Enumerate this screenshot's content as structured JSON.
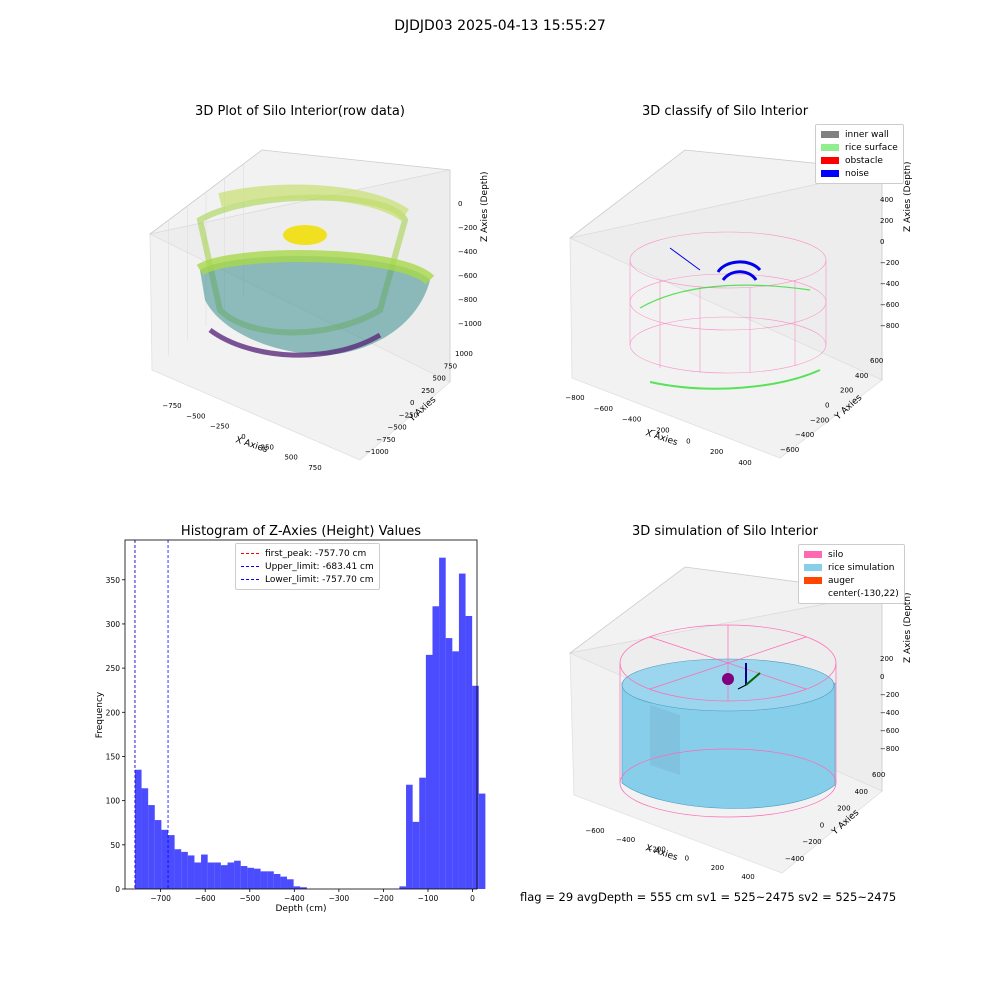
{
  "figure": {
    "suptitle": "DJDJD03 2025-04-13 15:55:27",
    "footer": "flag = 29  avgDepth = 555 cm  sv1 = 525~2475  sv2 = 525~2475"
  },
  "panels": {
    "raw": {
      "title": "3D Plot of Silo Interior(row data)",
      "xlabel": "X Axies",
      "ylabel": "Y Axies",
      "zlabel": "Z Axies (Depth)",
      "xticks": [
        "−750",
        "−500",
        "−250",
        "0",
        "250",
        "500",
        "750"
      ],
      "yticks": [
        "1000",
        "750",
        "500",
        "250",
        "0",
        "−250",
        "−500",
        "−750",
        "−1000"
      ],
      "zticks": [
        "0",
        "−200",
        "−400",
        "−600",
        "−800",
        "−1000"
      ]
    },
    "classify": {
      "title": "3D classify of Silo Interior",
      "xlabel": "X Axies",
      "ylabel": "Y Axies",
      "zlabel": "Z Axies (Depth)",
      "xticks": [
        "−800",
        "−600",
        "−400",
        "−200",
        "0",
        "200",
        "400"
      ],
      "yticks": [
        "600",
        "400",
        "200",
        "0",
        "−200",
        "−400",
        "−600"
      ],
      "zticks": [
        "400",
        "200",
        "0",
        "−200",
        "−400",
        "−600",
        "−800"
      ],
      "legend": [
        {
          "label": "inner wall",
          "color": "#808080"
        },
        {
          "label": "rice surface",
          "color": "#90ee90"
        },
        {
          "label": "obstacle",
          "color": "#ff0000"
        },
        {
          "label": "noise",
          "color": "#0000ff"
        }
      ]
    },
    "simulation": {
      "title": "3D simulation of Silo Interior",
      "xlabel": "X Axies",
      "ylabel": "Y Axies",
      "zlabel": "Z Axies (Depth)",
      "xticks": [
        "−600",
        "−400",
        "−200",
        "0",
        "200",
        "400"
      ],
      "yticks": [
        "600",
        "400",
        "200",
        "0",
        "−200",
        "−400"
      ],
      "zticks": [
        "200",
        "0",
        "−200",
        "−400",
        "−600",
        "−800"
      ],
      "legend": [
        {
          "label": "silo",
          "color": "#ff69b4"
        },
        {
          "label": "rice simulation",
          "color": "#87ceeb"
        },
        {
          "label": "auger",
          "color": "#ff4500"
        },
        {
          "label": "center(-130,22)",
          "color": ""
        }
      ]
    }
  },
  "chart_data": {
    "type": "bar",
    "title": "Histogram of Z-Axies (Height) Values",
    "xlabel": "Depth (cm)",
    "ylabel": "Frequency",
    "xlim": [
      -780,
      10
    ],
    "ylim": [
      0,
      395
    ],
    "xticks": [
      -700,
      -600,
      -500,
      -400,
      -300,
      -200,
      -100,
      0
    ],
    "xtick_labels": [
      "−700",
      "−600",
      "−500",
      "−400",
      "−300",
      "−200",
      "−100",
      "0"
    ],
    "yticks": [
      0,
      50,
      100,
      150,
      200,
      250,
      300,
      350
    ],
    "bin_edges_start": -757.7,
    "bin_width": 14.84,
    "values": [
      135,
      114,
      95,
      78,
      67,
      61,
      45,
      42,
      38,
      30,
      39,
      30,
      30,
      27,
      30,
      32,
      26,
      24,
      23,
      20,
      20,
      17,
      14,
      11,
      3,
      2,
      0,
      0,
      0,
      0,
      0,
      0,
      0,
      0,
      0,
      0,
      0,
      0,
      0,
      0,
      3,
      118,
      76,
      126,
      265,
      320,
      375,
      284,
      269,
      357,
      309,
      230,
      108
    ],
    "bar_color": "#0000ff",
    "vlines": [
      {
        "label": "first_peak: -757.70 cm",
        "x": -757.7,
        "color": "#ff0000"
      },
      {
        "label": "Upper_limit: -683.41 cm",
        "x": -683.41,
        "color": "#0000ff"
      },
      {
        "label": "Lower_limit: -757.70 cm",
        "x": -757.7,
        "color": "#0000ff"
      }
    ]
  }
}
